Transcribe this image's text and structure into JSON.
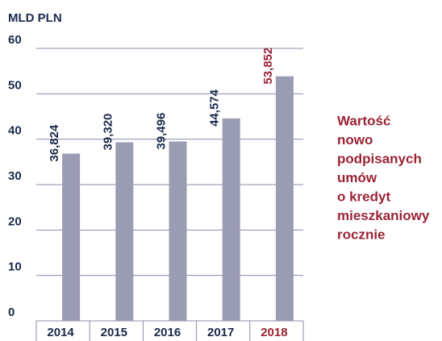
{
  "chart_data": {
    "type": "bar",
    "y_label": "MLD PLN",
    "categories": [
      "2014",
      "2015",
      "2016",
      "2017",
      "2018"
    ],
    "values": [
      36.824,
      39.32,
      39.496,
      44.574,
      53.852
    ],
    "value_labels": [
      "36,824",
      "39,320",
      "39,496",
      "44,574",
      "53,852"
    ],
    "color": "#9a9cb4",
    "highlight_index": 4,
    "highlight_color": "#9b2335",
    "ylim": [
      0,
      60
    ],
    "yticks": [
      0,
      10,
      20,
      30,
      40,
      50,
      60
    ],
    "grid": true,
    "annotation": [
      "Wartość",
      "nowo",
      "podpisanych",
      "umów",
      "o kredyt",
      "mieszkaniowy",
      "rocznie"
    ]
  }
}
